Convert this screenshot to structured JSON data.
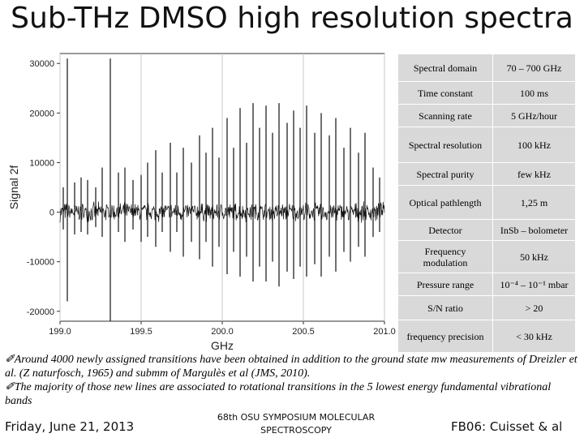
{
  "title": "Sub-THz DMSO high resolution spectra",
  "chart_data": {
    "type": "line",
    "xlabel": "GHz",
    "ylabel": "Signal 2f",
    "xlim": [
      199.0,
      201.0
    ],
    "ylim": [
      -22000,
      32000
    ],
    "xticks": [
      "199.0",
      "199.5",
      "200.0",
      "200.5",
      "201.0"
    ],
    "yticks": [
      "30000",
      "20000",
      "10000",
      "0",
      "-10000",
      "-20000"
    ],
    "grid": "vertical",
    "series": [
      {
        "lines": [
          {
            "x": 199.02,
            "top": 5000,
            "bottom": -3500
          },
          {
            "x": 199.045,
            "top": 31000,
            "bottom": -18000
          },
          {
            "x": 199.09,
            "top": 6000,
            "bottom": -4500
          },
          {
            "x": 199.13,
            "top": 7000,
            "bottom": -4000
          },
          {
            "x": 199.17,
            "top": 6500,
            "bottom": -4500
          },
          {
            "x": 199.22,
            "top": 5000,
            "bottom": -3000
          },
          {
            "x": 199.26,
            "top": 9000,
            "bottom": -5000
          },
          {
            "x": 199.31,
            "top": 31000,
            "bottom": -22000
          },
          {
            "x": 199.36,
            "top": 8000,
            "bottom": -4000
          },
          {
            "x": 199.4,
            "top": 9000,
            "bottom": -6000
          },
          {
            "x": 199.45,
            "top": 6500,
            "bottom": -3500
          },
          {
            "x": 199.5,
            "top": 7500,
            "bottom": -6000
          },
          {
            "x": 199.54,
            "top": 10000,
            "bottom": -5000
          },
          {
            "x": 199.59,
            "top": 12500,
            "bottom": -7000
          },
          {
            "x": 199.63,
            "top": 8000,
            "bottom": -4000
          },
          {
            "x": 199.68,
            "top": 14000,
            "bottom": -8000
          },
          {
            "x": 199.72,
            "top": 8000,
            "bottom": -4000
          },
          {
            "x": 199.76,
            "top": 13000,
            "bottom": -9000
          },
          {
            "x": 199.81,
            "top": 10000,
            "bottom": -6000
          },
          {
            "x": 199.86,
            "top": 15500,
            "bottom": -9500
          },
          {
            "x": 199.9,
            "top": 12000,
            "bottom": -6000
          },
          {
            "x": 199.94,
            "top": 17000,
            "bottom": -11000
          },
          {
            "x": 199.98,
            "top": 11000,
            "bottom": -7000
          },
          {
            "x": 200.03,
            "top": 19000,
            "bottom": -12500
          },
          {
            "x": 200.07,
            "top": 13000,
            "bottom": -8000
          },
          {
            "x": 200.11,
            "top": 21000,
            "bottom": -13000
          },
          {
            "x": 200.15,
            "top": 14000,
            "bottom": -9000
          },
          {
            "x": 200.19,
            "top": 22000,
            "bottom": -14000
          },
          {
            "x": 200.23,
            "top": 17000,
            "bottom": -11000
          },
          {
            "x": 200.27,
            "top": 21500,
            "bottom": -14000
          },
          {
            "x": 200.31,
            "top": 16000,
            "bottom": -10000
          },
          {
            "x": 200.35,
            "top": 22000,
            "bottom": -15000
          },
          {
            "x": 200.4,
            "top": 18000,
            "bottom": -12000
          },
          {
            "x": 200.44,
            "top": 20500,
            "bottom": -13500
          },
          {
            "x": 200.48,
            "top": 17000,
            "bottom": -11000
          },
          {
            "x": 200.52,
            "top": 21500,
            "bottom": -13000
          },
          {
            "x": 200.57,
            "top": 16000,
            "bottom": -10500
          },
          {
            "x": 200.61,
            "top": 20000,
            "bottom": -13000
          },
          {
            "x": 200.66,
            "top": 15500,
            "bottom": -9000
          },
          {
            "x": 200.7,
            "top": 19000,
            "bottom": -12000
          },
          {
            "x": 200.75,
            "top": 13000,
            "bottom": -8000
          },
          {
            "x": 200.79,
            "top": 17000,
            "bottom": -10000
          },
          {
            "x": 200.84,
            "top": 12000,
            "bottom": -7000
          },
          {
            "x": 200.88,
            "top": 16000,
            "bottom": -9000
          },
          {
            "x": 200.93,
            "top": 9000,
            "bottom": -5000
          },
          {
            "x": 200.97,
            "top": 7000,
            "bottom": -4000
          }
        ],
        "noise_amplitude": 2200
      }
    ],
    "colors": {
      "trace": "#111111",
      "grid": "#c8c8c8",
      "axis": "#333333",
      "background": "#ffffff"
    }
  },
  "params": {
    "rows": [
      {
        "label": "Spectral domain",
        "value": "70 – 700 GHz"
      },
      {
        "label": "Time constant",
        "value": "100 ms"
      },
      {
        "label": "Scanning rate",
        "value": "5 GHz/hour"
      },
      {
        "label": "Spectral resolution",
        "value": "100 kHz"
      },
      {
        "label": "Spectral purity",
        "value": "few kHz"
      },
      {
        "label": "Optical pathlength",
        "value": "1,25 m"
      },
      {
        "label": "Detector",
        "value": "InSb – bolometer"
      },
      {
        "label": "Frequency modulation",
        "value": "50 kHz"
      },
      {
        "label": "Pressure range",
        "value": "10⁻⁴ – 10⁻¹ mbar"
      },
      {
        "label": "S/N ratio",
        "value": "> 20"
      },
      {
        "label": "frequency precision",
        "value": "< 30 kHz"
      }
    ]
  },
  "notes": {
    "line1": "✐Around 4000 newly assigned transitions have been obtained in addition to the ground state mw measurements of Dreizler et al. (Z naturfosch, 1965) and submm of Margulès et al (JMS, 2010).",
    "line2": "✐The majority of those new lines are associated to rotational transitions in the 5 lowest energy fundamental vibrational bands"
  },
  "footer": {
    "date": "Friday, June 21, 2013",
    "conference": "68th OSU SYMPOSIUM MOLECULAR SPECTROSCOPY",
    "talk": "FB06: Cuisset & al"
  }
}
